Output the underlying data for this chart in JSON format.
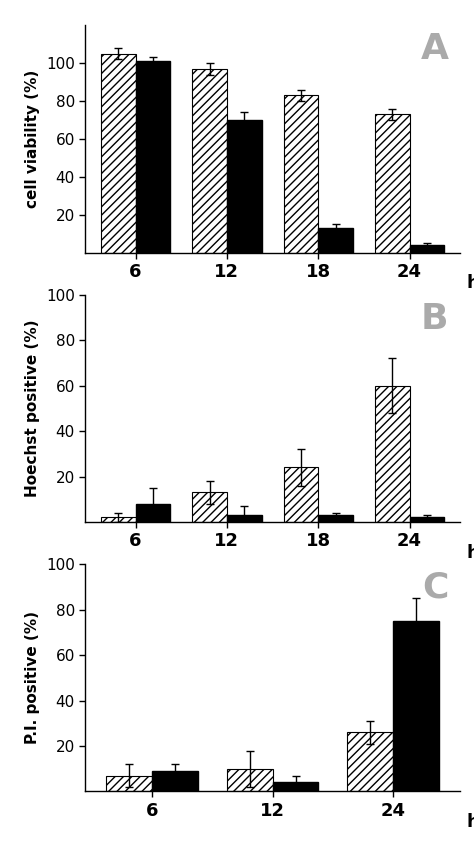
{
  "panel_A": {
    "label": "A",
    "ylabel": "cell viability (%)",
    "xtick_labels": [
      "6",
      "12",
      "18",
      "24"
    ],
    "ylim": [
      0,
      120
    ],
    "yticks": [
      20,
      40,
      60,
      80,
      100
    ],
    "hatch_values": [
      105,
      97,
      83,
      73
    ],
    "hatch_errors": [
      3,
      3,
      3,
      3
    ],
    "solid_values": [
      101,
      70,
      13,
      4
    ],
    "solid_errors": [
      2,
      4,
      2,
      1
    ]
  },
  "panel_B": {
    "label": "B",
    "ylabel": "Hoechst positive (%)",
    "xtick_labels": [
      "6",
      "12",
      "18",
      "24"
    ],
    "ylim": [
      0,
      100
    ],
    "yticks": [
      20,
      40,
      60,
      80,
      100
    ],
    "hatch_values": [
      2,
      13,
      24,
      60
    ],
    "hatch_errors": [
      2,
      5,
      8,
      12
    ],
    "solid_values": [
      8,
      3,
      3,
      2
    ],
    "solid_errors": [
      7,
      4,
      1,
      1
    ]
  },
  "panel_C": {
    "label": "C",
    "ylabel": "P.I. positive (%)",
    "xtick_labels": [
      "6",
      "12",
      "24"
    ],
    "ylim": [
      0,
      100
    ],
    "yticks": [
      20,
      40,
      60,
      80,
      100
    ],
    "hatch_values": [
      7,
      10,
      26
    ],
    "hatch_errors": [
      5,
      8,
      5
    ],
    "solid_values": [
      9,
      4,
      75
    ],
    "solid_errors": [
      3,
      3,
      10
    ]
  },
  "bar_width": 0.38,
  "hatch_pattern": "////",
  "hatch_color": "black",
  "hatch_facecolor": "white",
  "solid_color": "black",
  "label_color": "#aaaaaa",
  "label_fontsize": 26,
  "hpi_fontsize": 13,
  "tick_fontsize": 13,
  "ylabel_fontsize": 11
}
